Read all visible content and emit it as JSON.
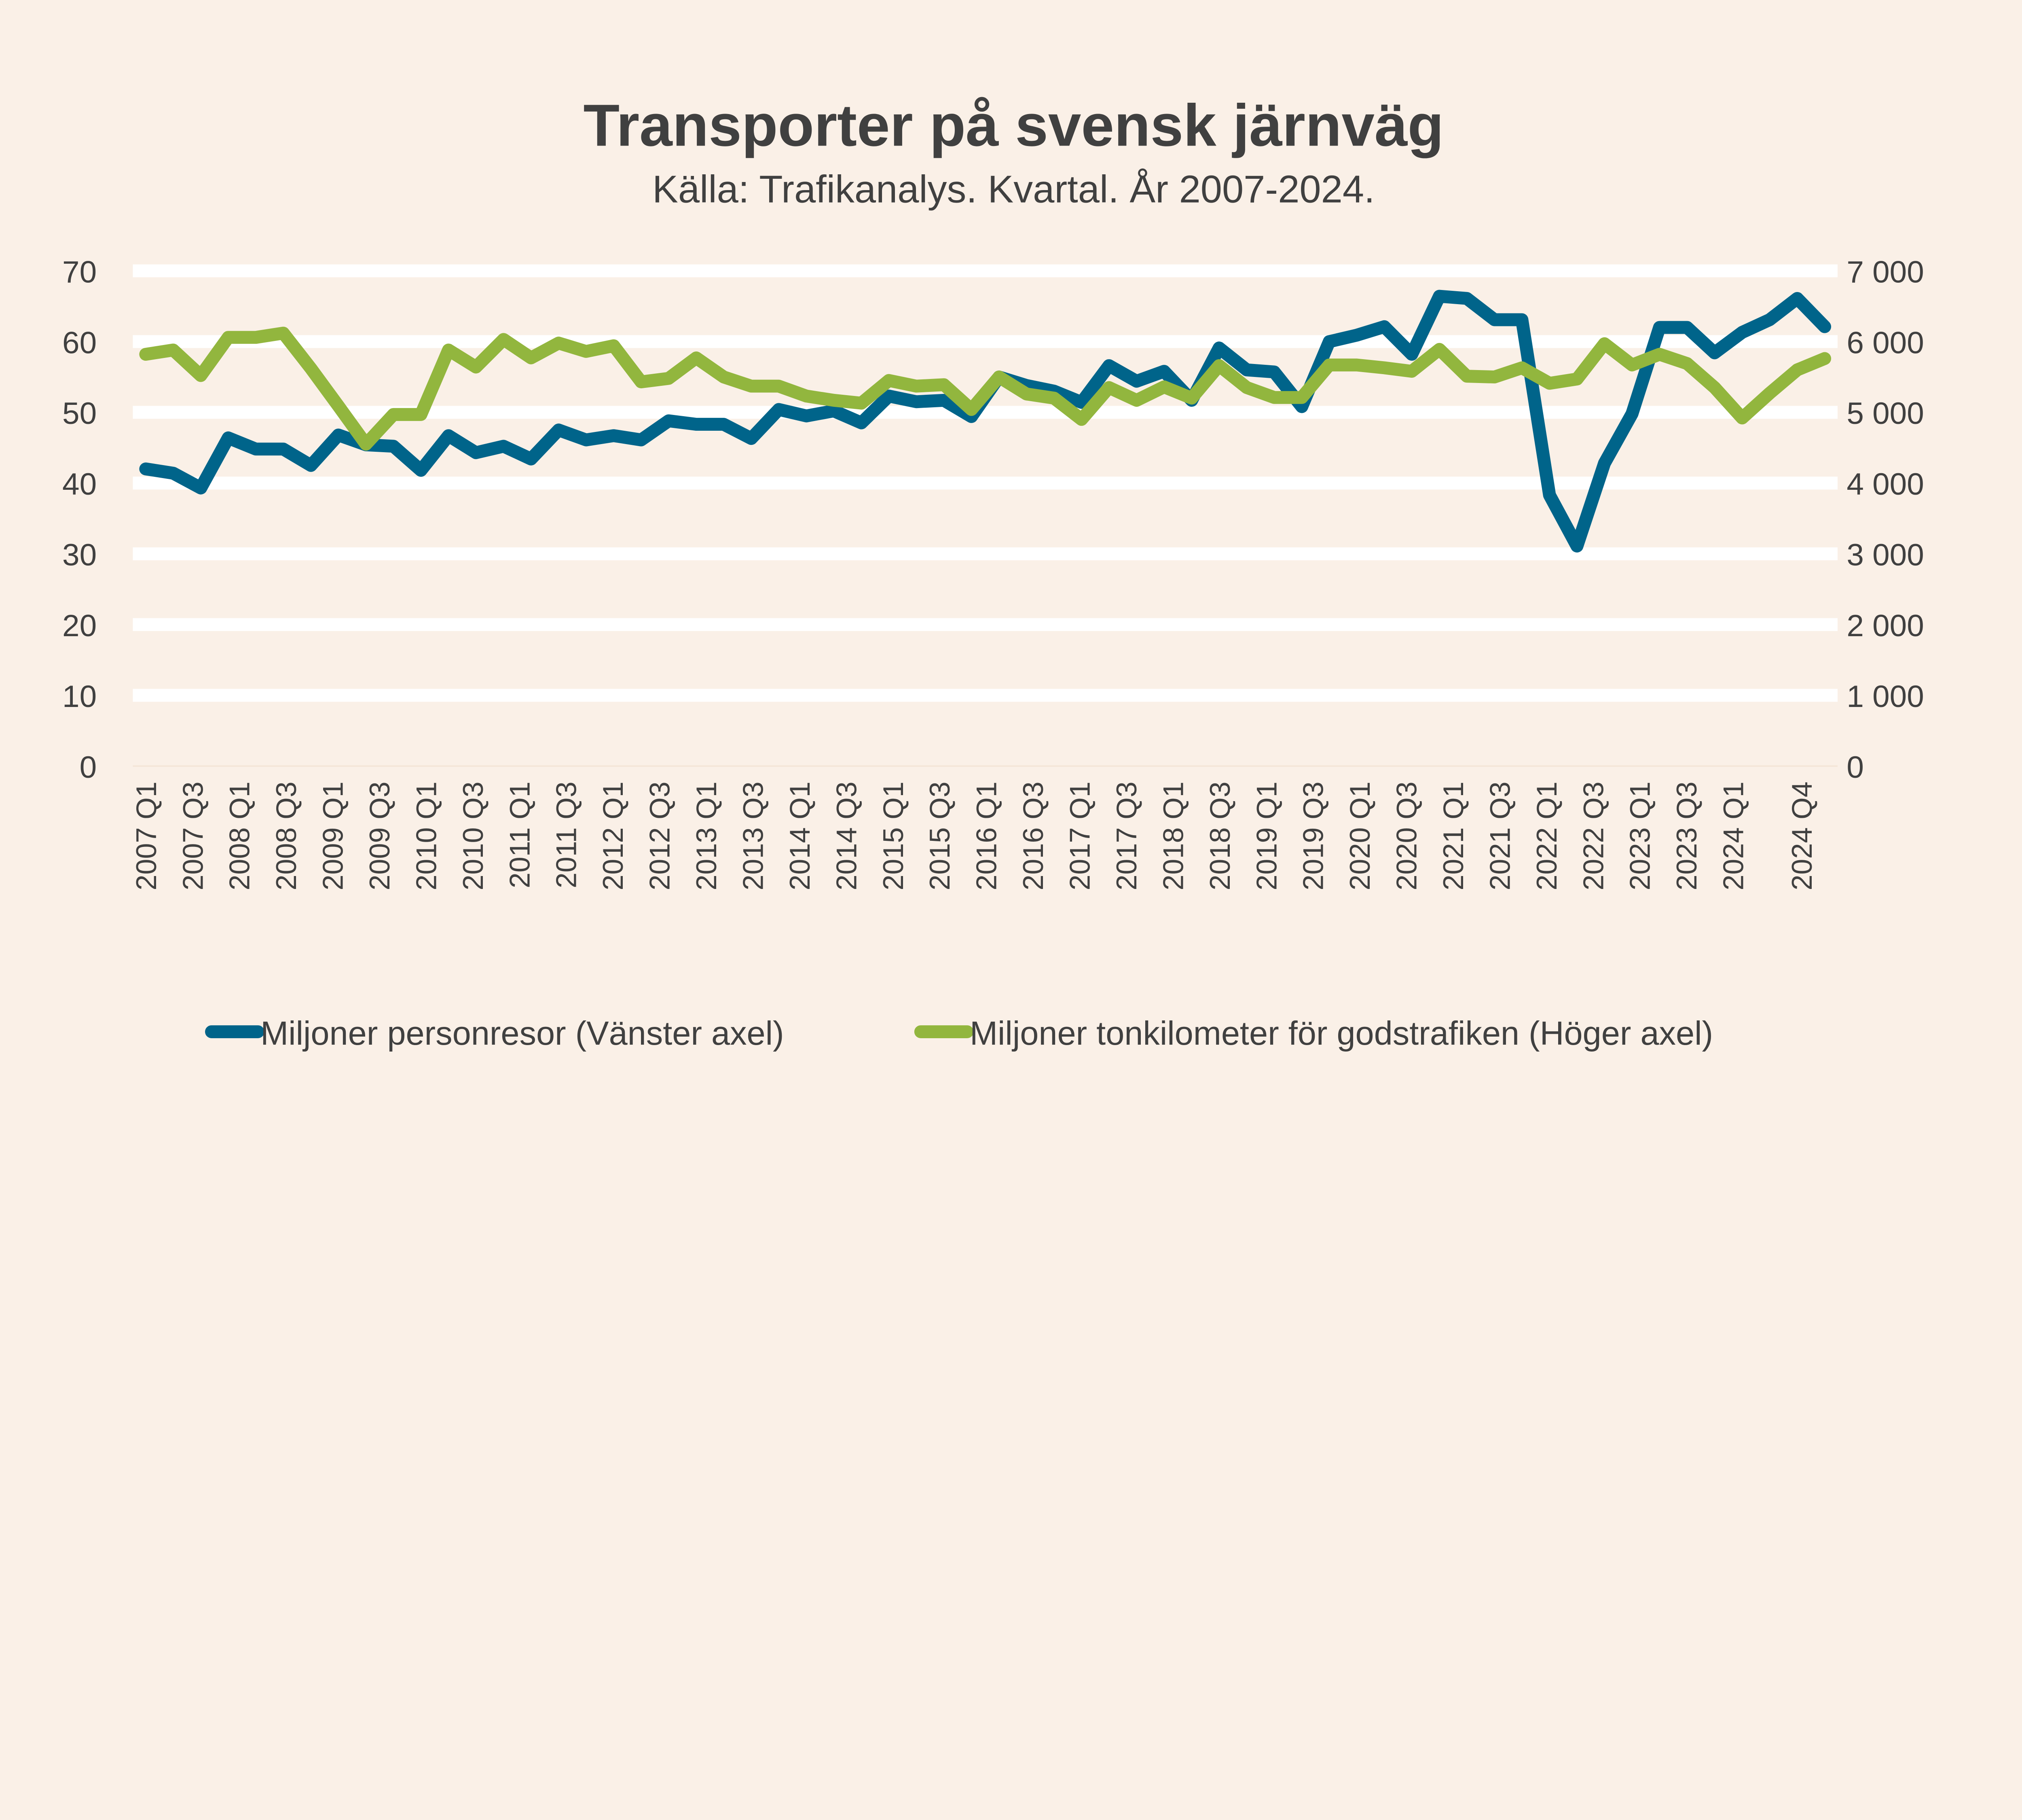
{
  "chart_data": {
    "type": "line",
    "title": "Transporter på svensk järnväg",
    "subtitle": "Källa: Trafikanalys. Kvartal. År 2007-2024.",
    "x_tick_labels": [
      "2007 Q1",
      "2007 Q3",
      "2008 Q1",
      "2008 Q3",
      "2009 Q1",
      "2009 Q3",
      "2010 Q1",
      "2010 Q3",
      "2011 Q1",
      "2011 Q3",
      "2012 Q1",
      "2012 Q3",
      "2013 Q1",
      "2013 Q3",
      "2014 Q1",
      "2014 Q3",
      "2015 Q1",
      "2015 Q3",
      "2016 Q1",
      "2016 Q3",
      "2017 Q1",
      "2017 Q3",
      "2018 Q1",
      "2018 Q3",
      "2019 Q1",
      "2019 Q3",
      "2020 Q1",
      "2020 Q3",
      "2021 Q1",
      "2021 Q3",
      "2022 Q1",
      "2022 Q3",
      "2023 Q1",
      "2023 Q3",
      "2024 Q1",
      "2024 Q4"
    ],
    "y_left": {
      "ylim": [
        0,
        70
      ],
      "ticks": [
        "0",
        "10",
        "20",
        "30",
        "40",
        "50",
        "60",
        "70"
      ]
    },
    "y_right": {
      "ylim": [
        0,
        7000
      ],
      "ticks": [
        "0",
        "1 000",
        "2 000",
        "3 000",
        "4 000",
        "5 000",
        "6 000",
        "7 000"
      ]
    },
    "grid": true,
    "legend_position": "bottom",
    "series": [
      {
        "name": "Miljoner personresor (Vänster axel)",
        "axis": "left",
        "color": "#00648A",
        "values": [
          42.0,
          41.4,
          39.3,
          46.4,
          44.8,
          44.8,
          42.5,
          46.8,
          45.4,
          45.2,
          41.8,
          46.7,
          44.3,
          45.2,
          43.4,
          47.5,
          46.1,
          46.7,
          46.1,
          48.8,
          48.3,
          48.3,
          46.3,
          50.4,
          49.5,
          50.2,
          48.5,
          52.3,
          51.5,
          51.7,
          49.4,
          55.0,
          53.8,
          53.0,
          51.4,
          56.6,
          54.4,
          55.8,
          51.7,
          59.1,
          56.0,
          55.7,
          50.8,
          60.0,
          60.9,
          62.1,
          58.2,
          66.4,
          66.1,
          63.1,
          63.1,
          38.3,
          31.1,
          42.8,
          49.8,
          62.0,
          62.0,
          58.4,
          61.3,
          63.1,
          66.1,
          62.1
        ]
      },
      {
        "name": "Miljoner tonkilometer för godstrafiken (Höger axel)",
        "axis": "right",
        "color": "#92B63E",
        "values": [
          5820,
          5880,
          5520,
          6060,
          6060,
          6120,
          5620,
          5090,
          4550,
          4970,
          4970,
          5880,
          5640,
          6030,
          5770,
          5980,
          5860,
          5940,
          5430,
          5480,
          5770,
          5500,
          5370,
          5370,
          5230,
          5170,
          5130,
          5450,
          5370,
          5390,
          5040,
          5500,
          5260,
          5200,
          4900,
          5350,
          5170,
          5360,
          5200,
          5660,
          5350,
          5210,
          5210,
          5670,
          5670,
          5630,
          5580,
          5890,
          5510,
          5500,
          5630,
          5410,
          5470,
          5970,
          5670,
          5820,
          5690,
          5350,
          4920,
          5270,
          5600,
          5760
        ]
      }
    ]
  }
}
